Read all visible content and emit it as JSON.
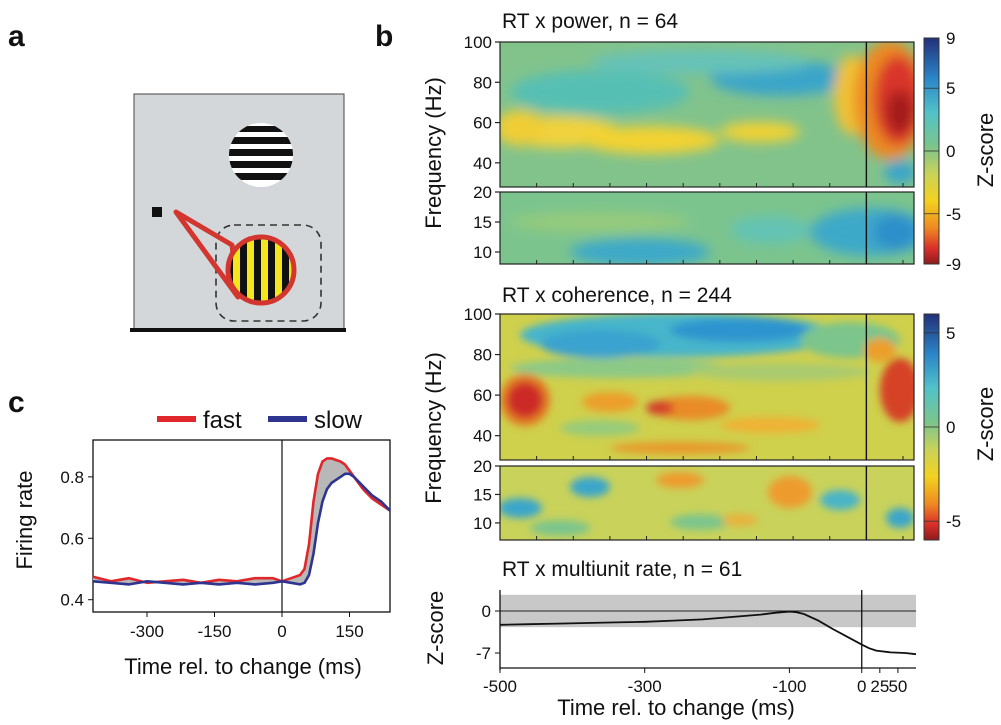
{
  "panel_labels": {
    "a": "a",
    "b": "b",
    "c": "c"
  },
  "colors": {
    "fast": "#e0272b",
    "slow": "#2d3590",
    "stim_background": "#d4d7da",
    "stim_outline": "#d2362e",
    "grating_yellow": "#f4e51c"
  },
  "chart_data": [
    {
      "id": "rt-power",
      "type": "heatmap",
      "title": "RT x power, n = 64",
      "ylabel": "Frequency (Hz)",
      "colorbar_label": "Z-score",
      "colorbar_ticks": [
        {
          "value": 9,
          "label": "9"
        },
        {
          "value": 5,
          "label": "5"
        },
        {
          "value": 0,
          "label": "0"
        },
        {
          "value": -5,
          "label": "-5"
        },
        {
          "value": -9,
          "label": "-9"
        }
      ],
      "clim": [
        -9,
        9
      ],
      "xlim": [
        -500,
        65
      ],
      "upper_band": {
        "ylim": [
          28,
          100
        ],
        "yticks": [
          100,
          80,
          60,
          40
        ]
      },
      "lower_band": {
        "ylim": [
          8,
          20
        ],
        "yticks": [
          20,
          15,
          10
        ]
      },
      "change_time": 0
    },
    {
      "id": "rt-coherence",
      "type": "heatmap",
      "title": "RT x coherence, n = 244",
      "ylabel": "Frequency (Hz)",
      "colorbar_label": "Z-score",
      "colorbar_ticks": [
        {
          "value": 5,
          "label": "5"
        },
        {
          "value": 0,
          "label": "0"
        },
        {
          "value": -5,
          "label": "-5"
        }
      ],
      "clim": [
        -6,
        6
      ],
      "xlim": [
        -500,
        65
      ],
      "upper_band": {
        "ylim": [
          28,
          100
        ],
        "yticks": [
          100,
          80,
          60,
          40
        ]
      },
      "lower_band": {
        "ylim": [
          7,
          20
        ],
        "yticks": [
          20,
          15,
          10
        ]
      },
      "change_time": 0
    },
    {
      "id": "rt-multiunit",
      "type": "line",
      "title": "RT x multiunit rate, n = 61",
      "xlabel": "Time rel. to change (ms)",
      "ylabel": "Z-score",
      "xlim": [
        -500,
        75
      ],
      "ylim": [
        -9.5,
        3.5
      ],
      "yticks": [
        {
          "value": 0,
          "label": "0"
        },
        {
          "value": -7,
          "label": "-7"
        }
      ],
      "xticks": [
        {
          "value": -500,
          "label": "-500"
        },
        {
          "value": -300,
          "label": "-300"
        },
        {
          "value": -100,
          "label": "-100"
        },
        {
          "value": 0,
          "label": "0"
        },
        {
          "value": 25,
          "label": "25"
        },
        {
          "value": 50,
          "label": "50"
        }
      ],
      "significance_band": [
        -2.7,
        2.7
      ],
      "x": [
        -500,
        -460,
        -420,
        -380,
        -340,
        -300,
        -260,
        -220,
        -180,
        -140,
        -120,
        -100,
        -90,
        -80,
        -60,
        -40,
        -20,
        0,
        10,
        20,
        40,
        60,
        75
      ],
      "y": [
        -2.3,
        -2.2,
        -2.1,
        -2.0,
        -1.9,
        -1.8,
        -1.6,
        -1.4,
        -1.0,
        -0.6,
        -0.3,
        -0.1,
        -0.2,
        -0.5,
        -1.6,
        -3.0,
        -4.3,
        -5.6,
        -6.2,
        -6.6,
        -6.9,
        -7.0,
        -7.2
      ]
    },
    {
      "id": "firing-rate",
      "type": "line",
      "xlabel": "Time rel. to change (ms)",
      "ylabel": "Firing rate",
      "xlim": [
        -420,
        240
      ],
      "ylim": [
        0.36,
        0.92
      ],
      "xticks": [
        {
          "value": -300,
          "label": "-300"
        },
        {
          "value": -150,
          "label": "-150"
        },
        {
          "value": 0,
          "label": "0"
        },
        {
          "value": 150,
          "label": "150"
        }
      ],
      "yticks": [
        {
          "value": 0.8,
          "label": "0.8"
        },
        {
          "value": 0.6,
          "label": "0.6"
        },
        {
          "value": 0.4,
          "label": "0.4"
        }
      ],
      "legend_position": "top-right",
      "x": [
        -420,
        -380,
        -340,
        -300,
        -260,
        -220,
        -180,
        -140,
        -100,
        -60,
        -20,
        0,
        20,
        40,
        50,
        60,
        70,
        80,
        90,
        100,
        110,
        120,
        130,
        140,
        150,
        160,
        180,
        200,
        220,
        240
      ],
      "series": [
        {
          "name": "fast",
          "values": [
            0.475,
            0.46,
            0.47,
            0.455,
            0.46,
            0.465,
            0.455,
            0.465,
            0.46,
            0.47,
            0.47,
            0.46,
            0.47,
            0.48,
            0.5,
            0.58,
            0.72,
            0.81,
            0.85,
            0.86,
            0.86,
            0.855,
            0.85,
            0.84,
            0.82,
            0.8,
            0.76,
            0.73,
            0.71,
            0.69
          ]
        },
        {
          "name": "slow",
          "values": [
            0.46,
            0.455,
            0.45,
            0.46,
            0.455,
            0.45,
            0.455,
            0.45,
            0.455,
            0.45,
            0.455,
            0.46,
            0.455,
            0.45,
            0.455,
            0.48,
            0.55,
            0.65,
            0.72,
            0.76,
            0.78,
            0.79,
            0.8,
            0.81,
            0.81,
            0.8,
            0.77,
            0.74,
            0.72,
            0.69
          ]
        }
      ]
    }
  ]
}
